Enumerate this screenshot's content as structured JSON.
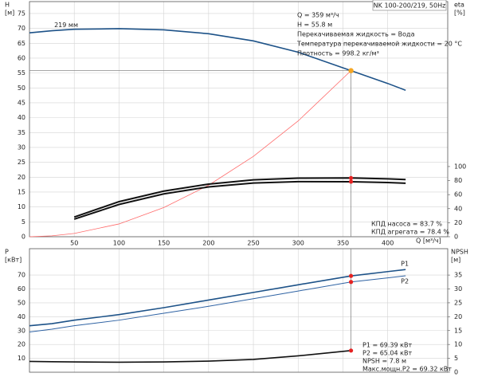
{
  "chart_data": [
    {
      "type": "line",
      "title": "NK 100-200/219, 50Hz",
      "ylabel": "H",
      "yunit": "[м]",
      "y2label": "eta",
      "y2unit": "[%]",
      "xlabel": "Q [м³/ч]",
      "xlim": [
        0,
        467
      ],
      "xticks": [
        50,
        100,
        150,
        200,
        250,
        300,
        350,
        400
      ],
      "ylim": [
        0,
        79
      ],
      "yticks": [
        0,
        5,
        10,
        15,
        20,
        25,
        30,
        35,
        40,
        45,
        50,
        55,
        60,
        65,
        70,
        75
      ],
      "y2lim": [
        0,
        335
      ],
      "y2ticks": [
        0,
        20,
        40,
        60,
        80,
        100
      ],
      "grid": true,
      "x": [
        0,
        25,
        50,
        100,
        150,
        200,
        250,
        300,
        359,
        400,
        420
      ],
      "series": [
        {
          "name": "219 мм",
          "color": "#1d5288",
          "width": 1.6,
          "values": [
            68.5,
            69.2,
            69.7,
            69.9,
            69.5,
            68.2,
            65.8,
            62.0,
            55.8,
            51.5,
            49.2
          ]
        },
        {
          "color": "#ff6b6b",
          "width": 0.8,
          "values": [
            0,
            0.3,
            1.1,
            4.3,
            9.8,
            17.3,
            27.0,
            38.9,
            55.8,
            null,
            null
          ]
        },
        {
          "color": "#111111",
          "width": 2,
          "axis": "y2",
          "values": [
            null,
            null,
            28,
            50,
            65,
            75,
            81,
            83.5,
            83.7,
            82.5,
            81.5
          ]
        },
        {
          "color": "#111111",
          "width": 2,
          "axis": "y2",
          "values": [
            null,
            null,
            25,
            46,
            61,
            71,
            76.5,
            78.5,
            78.4,
            77.2,
            76.2
          ]
        }
      ],
      "operating_point": {
        "x": 359,
        "y": 55.8,
        "color": "#f5a623"
      },
      "markers": [
        {
          "x": 359,
          "y": 83.7,
          "axis": "y2",
          "color": "#e52222"
        },
        {
          "x": 359,
          "y": 78.4,
          "axis": "y2",
          "color": "#e52222"
        }
      ],
      "annotations": [
        "Q = 359 м³/ч",
        "H = 55.8 м",
        "Перекачиваемая жидкость = Вода",
        "Температура перекачиваемой жидкости = 20 °C",
        "Плотность = 998.2 кг/м³"
      ],
      "efficiency_notes": [
        "КПД насоса = 83.7 %",
        "КПД агрегата = 78.4 %"
      ]
    },
    {
      "type": "line",
      "ylabel": "P",
      "yunit": "[кВт]",
      "y2label": "NPSH",
      "y2unit": "[м]",
      "xlim": [
        0,
        467
      ],
      "xticks": [
        50,
        100,
        150,
        200,
        250,
        300,
        350,
        400
      ],
      "ylim": [
        0,
        89
      ],
      "yticks": [
        10,
        20,
        30,
        40,
        50,
        60,
        70
      ],
      "y2lim": [
        0,
        44.5
      ],
      "y2ticks": [
        0,
        5,
        10,
        15,
        20,
        25,
        30,
        35
      ],
      "grid": true,
      "x": [
        0,
        25,
        50,
        100,
        150,
        200,
        250,
        300,
        359,
        400,
        420
      ],
      "series": [
        {
          "name": "P1",
          "color": "#1d5288",
          "width": 1.6,
          "values": [
            33.5,
            35,
            37.5,
            41.5,
            46.5,
            52,
            57.5,
            63,
            69.39,
            72.5,
            74
          ]
        },
        {
          "name": "P2",
          "color": "#2e62a3",
          "width": 1,
          "values": [
            29,
            31,
            33.5,
            37.5,
            42.5,
            47.5,
            53,
            58.5,
            65.04,
            68,
            69.5
          ]
        },
        {
          "color": "#111111",
          "width": 1.6,
          "axis": "y2",
          "values": [
            3.9,
            3.8,
            3.7,
            3.6,
            3.7,
            4.0,
            4.6,
            5.9,
            7.8,
            null,
            null
          ]
        }
      ],
      "markers": [
        {
          "x": 359,
          "y": 69.39,
          "color": "#e52222"
        },
        {
          "x": 359,
          "y": 65.04,
          "color": "#e52222"
        },
        {
          "x": 359,
          "y": 7.8,
          "axis": "y2",
          "color": "#e52222"
        }
      ],
      "annotations": [
        "P1 = 69.39 кВт",
        "P2 = 65.04 кВт",
        "NPSH = 7.8 м",
        "Макс.мощн.P2 = 69.32 кВт"
      ]
    }
  ]
}
